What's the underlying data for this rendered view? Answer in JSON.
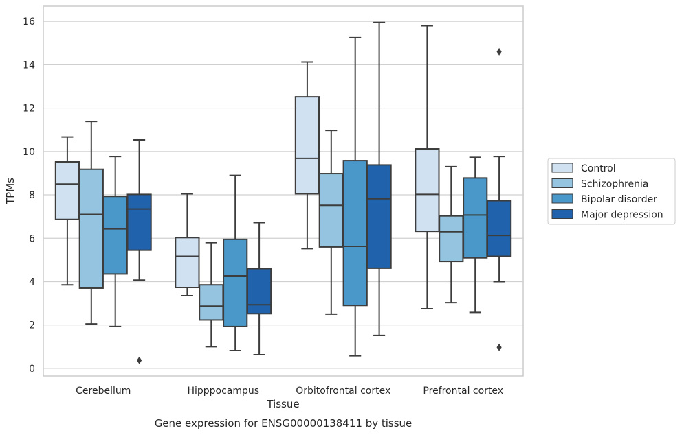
{
  "caption": "Gene expression for ENSG00000138411 by tissue",
  "chart_data": {
    "type": "boxplot",
    "xlabel": "Tissue",
    "ylabel": "TPMs",
    "ylim": [
      -0.35,
      16.7
    ],
    "yticks": [
      0,
      2,
      4,
      6,
      8,
      10,
      12,
      14,
      16
    ],
    "grid": "horizontal",
    "legend_position": "right",
    "categories": [
      "Cerebellum",
      "Hipppocampus",
      "Orbitofrontal cortex",
      "Prefrontal cortex"
    ],
    "series": [
      {
        "name": "Control",
        "color": "#d0e1f2",
        "boxes": [
          {
            "whislo": 3.85,
            "q1": 6.87,
            "med": 8.5,
            "q3": 9.52,
            "whishi": 10.67,
            "fliers": []
          },
          {
            "whislo": 3.35,
            "q1": 3.73,
            "med": 5.17,
            "q3": 6.03,
            "whishi": 8.05,
            "fliers": []
          },
          {
            "whislo": 5.52,
            "q1": 8.05,
            "med": 9.68,
            "q3": 12.52,
            "whishi": 14.12,
            "fliers": []
          },
          {
            "whislo": 2.75,
            "q1": 6.32,
            "med": 8.02,
            "q3": 10.12,
            "whishi": 15.8,
            "fliers": []
          }
        ]
      },
      {
        "name": "Schizophrenia",
        "color": "#94c4df",
        "boxes": [
          {
            "whislo": 2.05,
            "q1": 3.7,
            "med": 7.1,
            "q3": 9.18,
            "whishi": 11.38,
            "fliers": []
          },
          {
            "whislo": 1.0,
            "q1": 2.23,
            "med": 2.87,
            "q3": 3.85,
            "whishi": 5.8,
            "fliers": []
          },
          {
            "whislo": 2.5,
            "q1": 5.6,
            "med": 7.52,
            "q3": 8.98,
            "whishi": 10.97,
            "fliers": []
          },
          {
            "whislo": 3.03,
            "q1": 4.93,
            "med": 6.3,
            "q3": 7.03,
            "whishi": 9.3,
            "fliers": []
          }
        ]
      },
      {
        "name": "Bipolar disorder",
        "color": "#4a98c9",
        "boxes": [
          {
            "whislo": 1.93,
            "q1": 4.35,
            "med": 6.43,
            "q3": 7.93,
            "whishi": 9.77,
            "fliers": []
          },
          {
            "whislo": 0.82,
            "q1": 1.93,
            "med": 4.27,
            "q3": 5.95,
            "whishi": 8.9,
            "fliers": []
          },
          {
            "whislo": 0.58,
            "q1": 2.9,
            "med": 5.63,
            "q3": 9.58,
            "whishi": 15.25,
            "fliers": []
          },
          {
            "whislo": 2.58,
            "q1": 5.1,
            "med": 7.07,
            "q3": 8.78,
            "whishi": 9.73,
            "fliers": []
          }
        ]
      },
      {
        "name": "Major depression",
        "color": "#2062ab",
        "boxes": [
          {
            "whislo": 4.07,
            "q1": 5.45,
            "med": 7.35,
            "q3": 8.02,
            "whishi": 10.53,
            "fliers": [
              0.37
            ]
          },
          {
            "whislo": 0.63,
            "q1": 2.52,
            "med": 2.93,
            "q3": 4.6,
            "whishi": 6.72,
            "fliers": []
          },
          {
            "whislo": 1.52,
            "q1": 4.62,
            "med": 7.82,
            "q3": 9.38,
            "whishi": 15.95,
            "fliers": []
          },
          {
            "whislo": 4.0,
            "q1": 5.17,
            "med": 6.13,
            "q3": 7.73,
            "whishi": 9.77,
            "fliers": [
              0.97,
              14.6
            ]
          }
        ]
      }
    ]
  }
}
